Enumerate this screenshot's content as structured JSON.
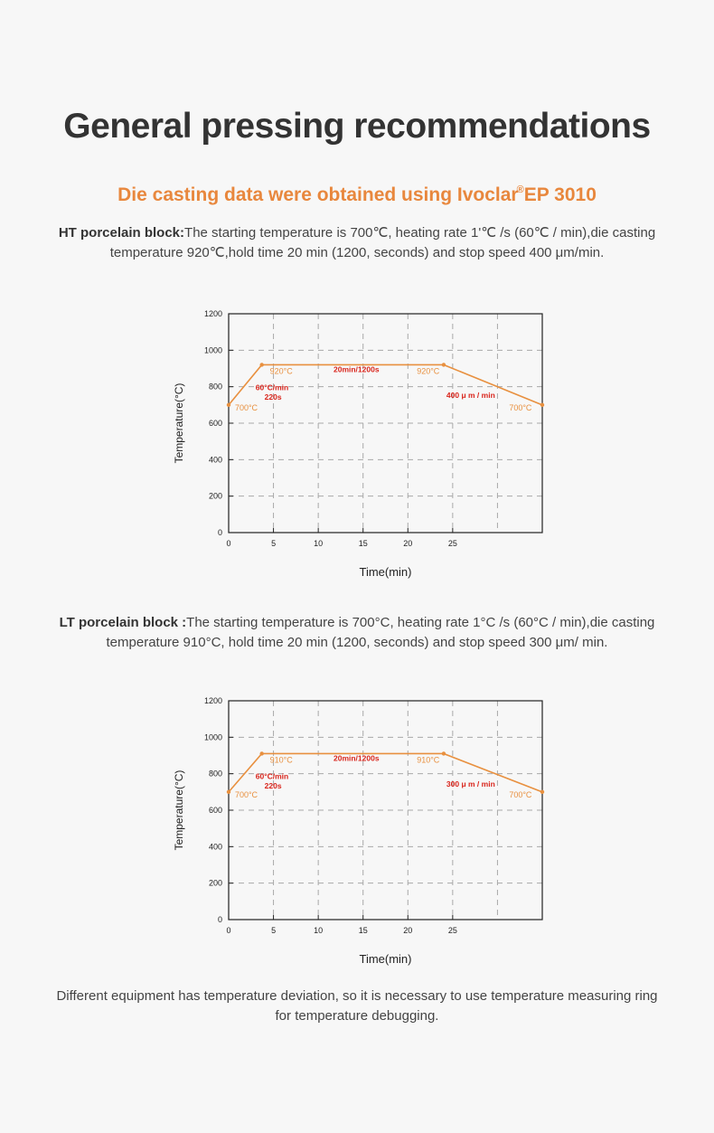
{
  "title": "General pressing recommendations",
  "subtitle": {
    "text": "Die casting data were obtained using Ivoclar",
    "reg": "®",
    "model": "EP 3010"
  },
  "ht_block": {
    "label": "HT porcelain block:",
    "text": "The starting temperature is 700℃, heating rate 1'℃ /s (60℃ / min),die casting temperature 920℃,hold time 20 min (1200, seconds) and stop speed 400 μm/min."
  },
  "lt_block": {
    "label": "LT porcelain block :",
    "text": "The starting temperature is 700°C, heating rate 1°C /s (60°C / min),die casting temperature 910°C, hold time 20 min (1200, seconds) and stop speed 300 μm/ min."
  },
  "footer": "Different equipment has temperature deviation, so it is necessary to use temperature measuring ring for temperature debugging.",
  "colors": {
    "accent": "#e8873d",
    "line": "#e8903f",
    "red_annotation": "#d9251c",
    "text": "#333333"
  },
  "chart_data": [
    {
      "type": "line",
      "ylabel": "Temperature(°C)",
      "xlabel": "Time(min)",
      "ylim": [
        0,
        1200
      ],
      "xlim": [
        0,
        35
      ],
      "yticks": [
        0,
        200,
        400,
        600,
        800,
        1000,
        1200
      ],
      "xticks": [
        0,
        5,
        10,
        15,
        20,
        25
      ],
      "grid": true,
      "series": [
        {
          "x": [
            0,
            3.7,
            24,
            35
          ],
          "y": [
            700,
            920,
            920,
            700
          ]
        }
      ],
      "annotations": [
        {
          "text": "700°C",
          "x": 0.7,
          "y": 670,
          "color": "orange"
        },
        {
          "text": "920°C",
          "x": 4.6,
          "y": 870,
          "color": "orange"
        },
        {
          "text": "20min/1200s",
          "x": 11.7,
          "y": 880,
          "color": "red"
        },
        {
          "text": "920°C",
          "x": 21,
          "y": 870,
          "color": "orange"
        },
        {
          "text": "60°C/min",
          "x": 3.0,
          "y": 780,
          "color": "red"
        },
        {
          "text": "220s",
          "x": 4.0,
          "y": 730,
          "color": "red"
        },
        {
          "text": "400 μ m / min",
          "x": 24.3,
          "y": 740,
          "color": "red"
        },
        {
          "text": "700°C",
          "x": 31.3,
          "y": 670,
          "color": "orange"
        }
      ]
    },
    {
      "type": "line",
      "ylabel": "Temperature(°C)",
      "xlabel": "Time(min)",
      "ylim": [
        0,
        1200
      ],
      "xlim": [
        0,
        35
      ],
      "yticks": [
        0,
        200,
        400,
        600,
        800,
        1000,
        1200
      ],
      "xticks": [
        0,
        5,
        10,
        15,
        20,
        25
      ],
      "grid": true,
      "series": [
        {
          "x": [
            0,
            3.7,
            24,
            35
          ],
          "y": [
            700,
            910,
            910,
            700
          ]
        }
      ],
      "annotations": [
        {
          "text": "700°C",
          "x": 0.7,
          "y": 670,
          "color": "orange"
        },
        {
          "text": "910°C",
          "x": 4.6,
          "y": 860,
          "color": "orange"
        },
        {
          "text": "20min/1200s",
          "x": 11.7,
          "y": 870,
          "color": "red"
        },
        {
          "text": "910°C",
          "x": 21,
          "y": 860,
          "color": "orange"
        },
        {
          "text": "60°C/min",
          "x": 3.0,
          "y": 770,
          "color": "red"
        },
        {
          "text": "220s",
          "x": 4.0,
          "y": 720,
          "color": "red"
        },
        {
          "text": "300 μ m / min",
          "x": 24.3,
          "y": 730,
          "color": "red"
        },
        {
          "text": "700°C",
          "x": 31.3,
          "y": 670,
          "color": "orange"
        }
      ]
    }
  ]
}
